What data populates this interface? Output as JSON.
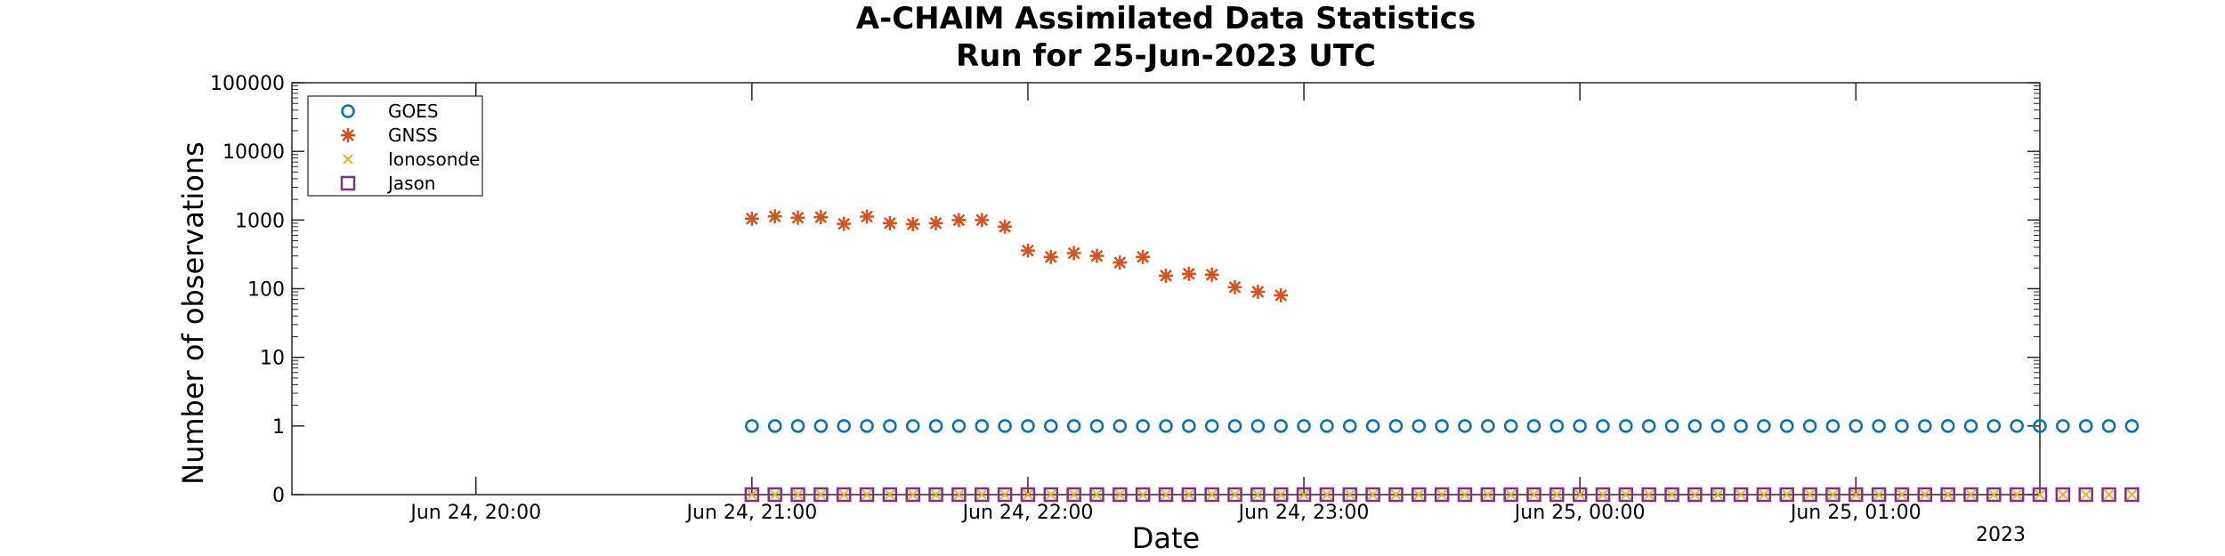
{
  "chart_data": {
    "type": "scatter",
    "title": [
      "A-CHAIM Assimilated Data Statistics",
      "Run for 25-Jun-2023 UTC"
    ],
    "xlabel": "Date",
    "ylabel": "Number of observations",
    "x_range": [
      "2023-06-24 19:20",
      "2023-06-25 01:40"
    ],
    "x_ticks": [
      {
        "t": "2023-06-24 20:00",
        "label": "Jun 24, 20:00"
      },
      {
        "t": "2023-06-24 21:00",
        "label": "Jun 24, 21:00"
      },
      {
        "t": "2023-06-24 22:00",
        "label": "Jun 24, 22:00"
      },
      {
        "t": "2023-06-24 23:00",
        "label": "Jun 24, 23:00"
      },
      {
        "t": "2023-06-25 00:00",
        "label": "Jun 25, 00:00"
      },
      {
        "t": "2023-06-25 01:00",
        "label": "Jun 25, 01:00"
      }
    ],
    "x_year_label": "2023",
    "y_scale": "log, with 0 shown at bottom",
    "y_ticks": [
      "0",
      "1",
      "10",
      "100",
      "1000",
      "10000",
      "100000"
    ],
    "grid": false,
    "legend_position": "top-left",
    "series": [
      {
        "name": "GOES",
        "marker": "circle",
        "color": "#0072BD",
        "x_start": "2023-06-24 21:00",
        "x_step_minutes": 5,
        "values": [
          1,
          1,
          1,
          1,
          1,
          1,
          1,
          1,
          1,
          1,
          1,
          1,
          1,
          1,
          1,
          1,
          1,
          1,
          1,
          1,
          1,
          1,
          1,
          1,
          1,
          1,
          1,
          1,
          1,
          1,
          1,
          1,
          1,
          1,
          1,
          1,
          1,
          1,
          1,
          1,
          1,
          1,
          1,
          1,
          1,
          1,
          1,
          1,
          1,
          1,
          1,
          1,
          1,
          1,
          1,
          1,
          1,
          1,
          1,
          1,
          1
        ]
      },
      {
        "name": "GNSS",
        "marker": "asterisk",
        "color": "#D95319",
        "x_start": "2023-06-24 21:00",
        "x_step_minutes": 5,
        "values": [
          1050,
          1130,
          1080,
          1100,
          880,
          1120,
          900,
          870,
          900,
          1000,
          1000,
          800,
          360,
          290,
          330,
          300,
          240,
          290,
          155,
          165,
          160,
          105,
          90,
          80
        ]
      },
      {
        "name": "Ionosonde",
        "marker": "x",
        "color": "#EDB120",
        "x_start": "2023-06-24 21:00",
        "x_step_minutes": 5,
        "values": [
          0,
          0,
          0,
          0,
          0,
          0,
          0,
          0,
          0,
          0,
          0,
          0,
          0,
          0,
          0,
          0,
          0,
          0,
          0,
          0,
          0,
          0,
          0,
          0,
          0,
          0,
          0,
          0,
          0,
          0,
          0,
          0,
          0,
          0,
          0,
          0,
          0,
          0,
          0,
          0,
          0,
          0,
          0,
          0,
          0,
          0,
          0,
          0,
          0,
          0,
          0,
          0,
          0,
          0,
          0,
          0,
          0,
          0,
          0,
          0,
          0
        ]
      },
      {
        "name": "Jason",
        "marker": "square",
        "color": "#7E2F8E",
        "x_start": "2023-06-24 21:00",
        "x_step_minutes": 5,
        "values": [
          0,
          0,
          0,
          0,
          0,
          0,
          0,
          0,
          0,
          0,
          0,
          0,
          0,
          0,
          0,
          0,
          0,
          0,
          0,
          0,
          0,
          0,
          0,
          0,
          0,
          0,
          0,
          0,
          0,
          0,
          0,
          0,
          0,
          0,
          0,
          0,
          0,
          0,
          0,
          0,
          0,
          0,
          0,
          0,
          0,
          0,
          0,
          0,
          0,
          0,
          0,
          0,
          0,
          0,
          0,
          0,
          0,
          0,
          0,
          0,
          0
        ]
      }
    ]
  }
}
